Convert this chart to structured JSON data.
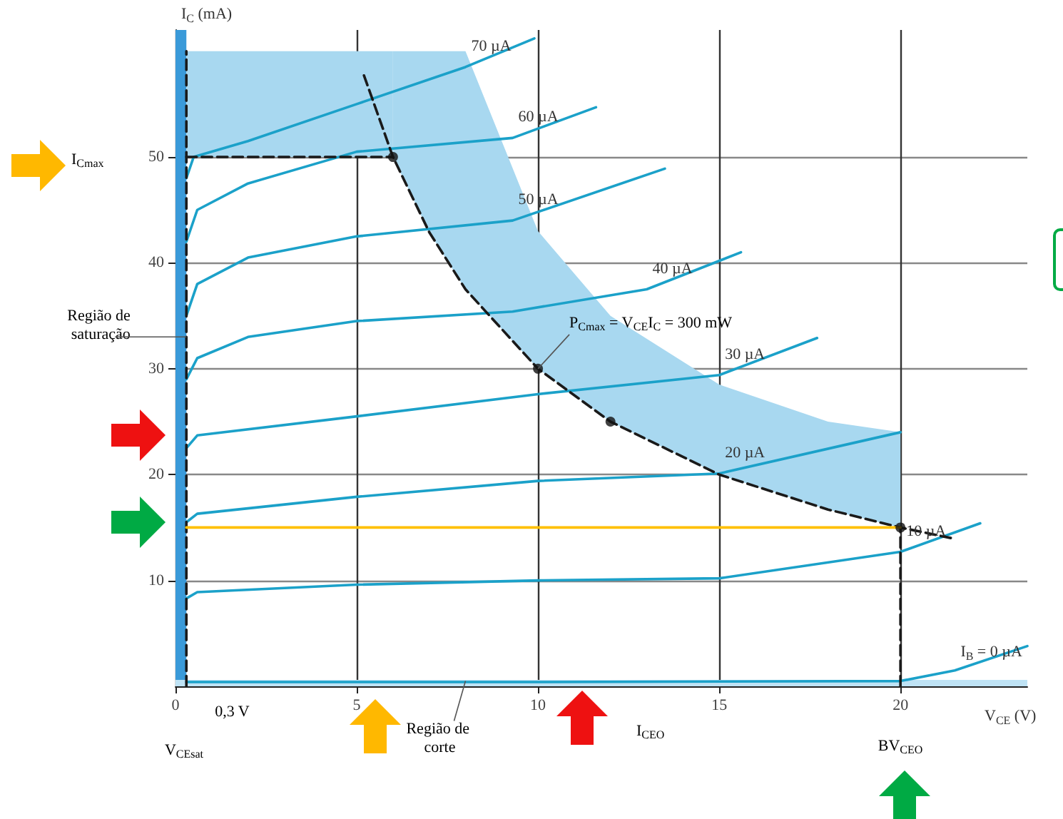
{
  "chart_data": {
    "type": "line",
    "xlabel": "V$_{CE}$ (V)",
    "ylabel": "I$_{C}$ (mA)",
    "xlim": [
      0,
      23.5
    ],
    "ylim": [
      0,
      62
    ],
    "xticks": [
      0,
      5,
      10,
      15,
      20
    ],
    "yticks": [
      10,
      20,
      30,
      40,
      50
    ],
    "grid": true,
    "marker": "none",
    "line_style": "solid",
    "series": [
      {
        "name": "70 µA",
        "color": "#1ba1c9",
        "x": [
          0.3,
          0.5,
          2,
          5,
          8,
          9.9
        ],
        "values": [
          48,
          50,
          51.5,
          55,
          58.5,
          61.2
        ]
      },
      {
        "name": "60 µA",
        "color": "#1ba1c9",
        "x": [
          0.3,
          0.6,
          2,
          5,
          9.3,
          11.6
        ],
        "values": [
          42,
          45,
          47.5,
          50.5,
          51.8,
          54.7
        ]
      },
      {
        "name": "50 µA",
        "color": "#1ba1c9",
        "x": [
          0.3,
          0.6,
          2,
          5,
          9.3,
          13.5
        ],
        "values": [
          35,
          38,
          40.5,
          42.5,
          44,
          48.9
        ]
      },
      {
        "name": "40 µA",
        "color": "#1ba1c9",
        "x": [
          0.3,
          0.6,
          2,
          5,
          9.3,
          13,
          15.6
        ],
        "values": [
          29,
          31,
          33,
          34.5,
          35.4,
          37.5,
          41
        ]
      },
      {
        "name": "30 µA",
        "color": "#1ba1c9",
        "x": [
          0.3,
          0.6,
          5,
          10,
          15,
          17.7
        ],
        "values": [
          22.5,
          23.7,
          25.5,
          27.6,
          29.4,
          32.9
        ]
      },
      {
        "name": "20 µA",
        "color": "#1ba1c9",
        "x": [
          0.3,
          0.6,
          5,
          10,
          15,
          20
        ],
        "values": [
          15.5,
          16.3,
          17.9,
          19.4,
          20.1,
          24
        ]
      },
      {
        "name": "10 µA",
        "color": "#1ba1c9",
        "x": [
          0.3,
          0.6,
          5,
          10,
          15,
          20,
          22.2
        ],
        "values": [
          8.3,
          8.9,
          9.6,
          10,
          10.2,
          12.7,
          15.4
        ]
      },
      {
        "name": "I$_{B}$ = 0 µA",
        "color": "#1ba1c9",
        "x": [
          0.3,
          10,
          20,
          21.5,
          23.5
        ],
        "values": [
          0.4,
          0.4,
          0.5,
          1.5,
          3.8
        ]
      },
      {
        "color": "#1a1a1a",
        "line_style": "dashed",
        "x": [
          5.2,
          6,
          7,
          8,
          10,
          12,
          15,
          18,
          20,
          21.4
        ],
        "values": [
          57.7,
          50,
          42.9,
          37.5,
          30,
          25,
          20,
          16.7,
          15,
          14
        ],
        "lower": [
          null,
          50,
          42.9,
          37.5,
          30,
          25,
          20,
          16.7,
          15,
          null
        ],
        "upper": [
          null,
          60,
          60,
          60,
          43,
          35,
          28.5,
          25,
          24,
          null
        ]
      },
      {
        "color": "#1a1a1a",
        "line_style": "dashed",
        "x": [
          0.3,
          6
        ],
        "values": [
          50,
          50
        ],
        "lower": [
          50,
          50
        ],
        "upper": [
          60,
          60
        ]
      },
      {
        "color": "#1a1a1a",
        "line_style": "dashed",
        "x": [
          0.3,
          0.3
        ],
        "values": [
          0,
          60
        ]
      },
      {
        "color": "#1a1a1a",
        "line_style": "dashed",
        "x": [
          20,
          20
        ],
        "values": [
          0,
          15
        ]
      },
      {
        "type": "scatter",
        "marker": "circle",
        "color": "#111111",
        "x": [
          6,
          10,
          12,
          20
        ],
        "values": [
          50,
          30,
          25,
          15
        ]
      },
      {
        "color": "#ffc000",
        "x": [
          0.3,
          20
        ],
        "values": [
          15,
          15
        ]
      }
    ],
    "bands": [
      {
        "axis": "x",
        "from": 0,
        "to": 0.3,
        "color": "#3a9ad9"
      },
      {
        "axis": "y",
        "from": 0,
        "to": 0.6,
        "color": "#bfe3f5"
      }
    ],
    "annotations": [
      "I$_{Cmax}$",
      {
        "text": "Região de saturação",
        "x": 0.3,
        "y": 33
      },
      {
        "text": "0,3 V",
        "x": 0.3,
        "y": 0
      },
      "V$_{CEsat}$",
      {
        "text": "Região de corte",
        "x": 8,
        "y": 0.5
      },
      {
        "text": "I$_{CEO}$",
        "x": 13.1,
        "y": 0.5
      },
      "BV$_{CEO}$",
      {
        "text": "P$_{Cmax}$ = V$_{CE}$I$_{C}$ = 300 mW",
        "x": 10,
        "y": 30
      }
    ]
  }
}
